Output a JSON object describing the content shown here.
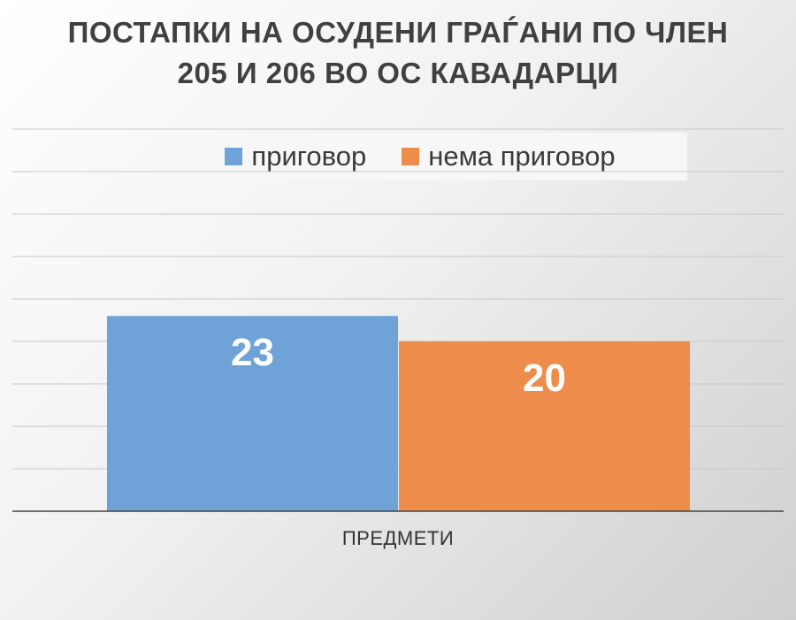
{
  "chart_data": {
    "type": "bar",
    "title_lines": [
      "ПОСТАПКИ НА ОСУДЕНИ ГРАЃАНИ ПО ЧЛЕН",
      "205 И 206 ВО ОС КАВАДАРЦИ"
    ],
    "categories": [
      "ПРЕДМЕТИ"
    ],
    "series": [
      {
        "name": "приговор",
        "values": [
          23
        ],
        "color": "#6fa3d8"
      },
      {
        "name": "нема приговор",
        "values": [
          20
        ],
        "color": "#ed8c4b"
      }
    ],
    "ylim": [
      0,
      45
    ],
    "grid": true,
    "legend_position": "top",
    "data_labels": true
  }
}
